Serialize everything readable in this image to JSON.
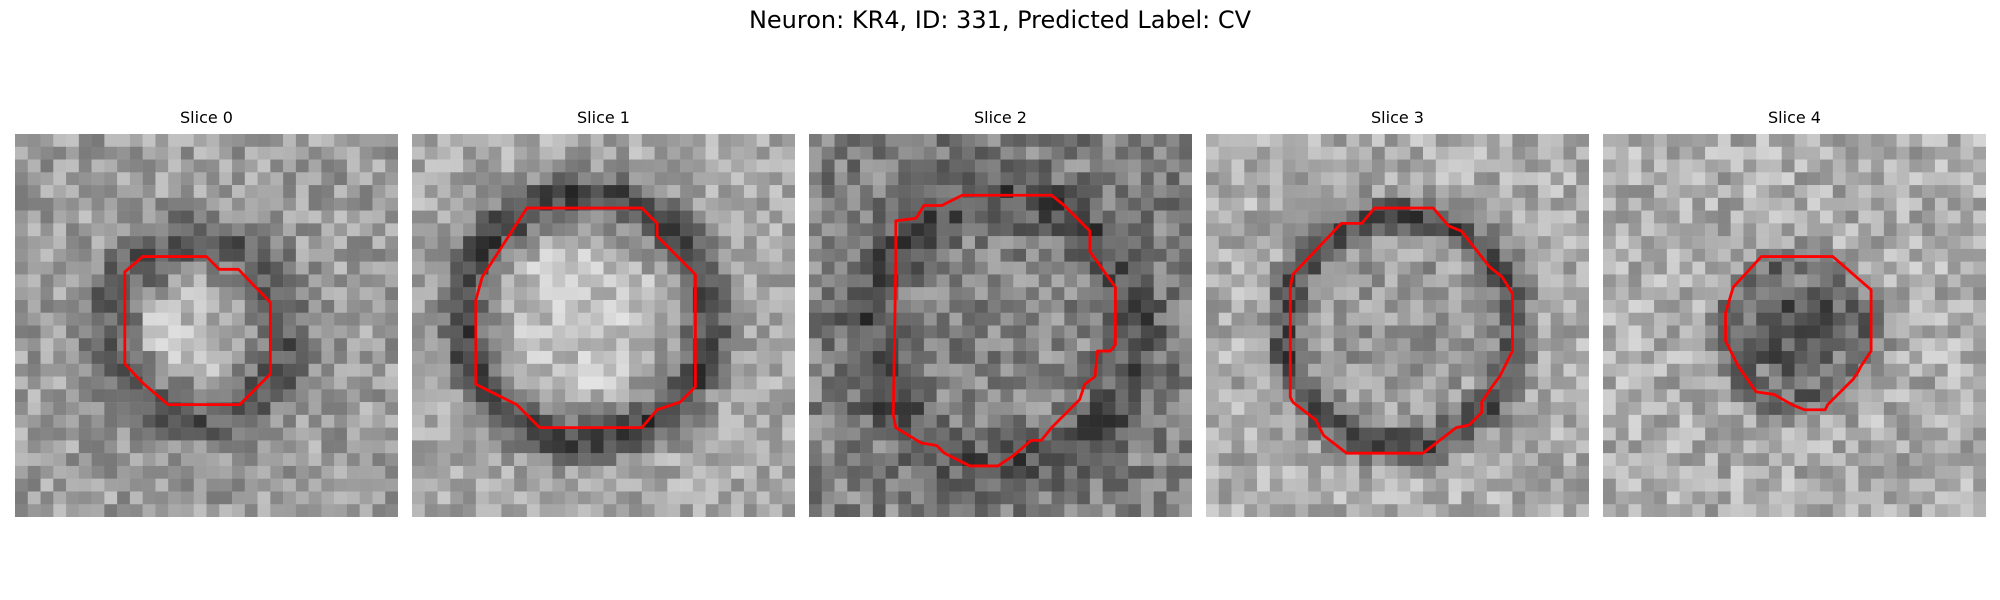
{
  "figure": {
    "title": "Neuron: KR4, ID: 331, Predicted Label: CV",
    "outline_color": "#ff0000",
    "colormap": "grayscale"
  },
  "slices": [
    {
      "title": "Slice 0"
    },
    {
      "title": "Slice 1"
    },
    {
      "title": "Slice 2"
    },
    {
      "title": "Slice 3"
    },
    {
      "title": "Slice 4"
    }
  ]
}
